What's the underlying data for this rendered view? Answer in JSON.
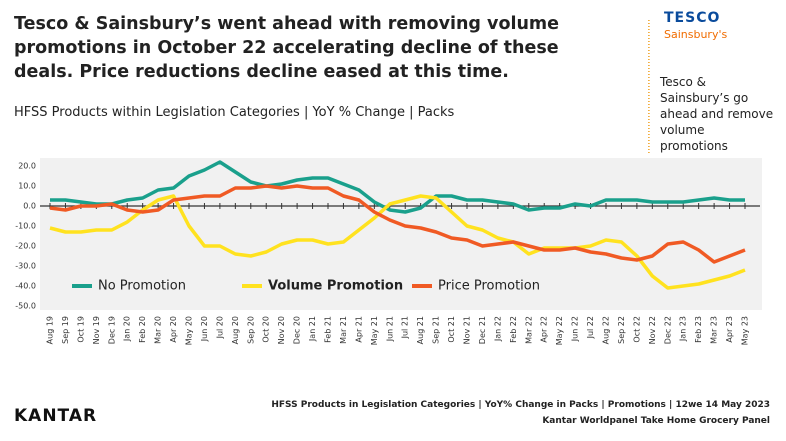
{
  "chart_data": {
    "type": "line",
    "title": "Tesco & Sainsbury’s went ahead with removing volume promotions in October 22 accelerating decline of these deals. Price reductions decline eased at this time.",
    "subtitle": "HFSS Products within Legislation Categories | YoY % Change | Packs",
    "annotation": "Tesco & Sainsbury’s go ahead and remove volume promotions",
    "logos": [
      "TESCO",
      "Sainsbury's"
    ],
    "footer": [
      "HFSS Products in Legislation Categories | YoY% Change in Packs | Promotions | 12we 14 May 2023",
      "Kantar Worldpanel Take Home Grocery Panel"
    ],
    "brand": "KANTAR",
    "categories": [
      "Aug 19",
      "Sep 19",
      "Oct 19",
      "Nov 19",
      "Dec 19",
      "Jan 20",
      "Feb 20",
      "Mar 20",
      "Apr 20",
      "May 20",
      "Jun 20",
      "Jul 20",
      "Aug 20",
      "Sep 20",
      "Oct 20",
      "Nov 20",
      "Dec 20",
      "Jan 21",
      "Feb 21",
      "Mar 21",
      "Apr 21",
      "May 21",
      "Jun 21",
      "Jul 21",
      "Aug 21",
      "Sep 21",
      "Oct 21",
      "Nov 21",
      "Dec 21",
      "Jan 22",
      "Feb 22",
      "Mar 22",
      "Apr 22",
      "May 22",
      "Jun 22",
      "Jul 22",
      "Aug 22",
      "Sep 22",
      "Oct 22",
      "Nov 22",
      "Dec 22",
      "Jan 23",
      "Feb 23",
      "Mar 23",
      "Apr 23",
      "May 23"
    ],
    "series": [
      {
        "name": "No Promotion",
        "color": "#1aa08c",
        "values": [
          3,
          3,
          2,
          1,
          1,
          3,
          4,
          8,
          9,
          15,
          18,
          22,
          17,
          12,
          10,
          11,
          13,
          14,
          14,
          11,
          8,
          2,
          -2,
          -3,
          -1,
          5,
          5,
          3,
          3,
          2,
          1,
          -2,
          -1,
          -1,
          1,
          0,
          3,
          3,
          3,
          2,
          2,
          2,
          3,
          4,
          3,
          3
        ]
      },
      {
        "name": "Volume Promotion",
        "color": "#ffe21f",
        "values": [
          -11,
          -13,
          -13,
          -12,
          -12,
          -8,
          -2,
          3,
          5,
          -10,
          -20,
          -20,
          -24,
          -25,
          -23,
          -19,
          -17,
          -17,
          -19,
          -18,
          -12,
          -6,
          1,
          3,
          5,
          4,
          -3,
          -10,
          -12,
          -16,
          -18,
          -24,
          -21,
          -21,
          -21,
          -20,
          -17,
          -18,
          -25,
          -35,
          -41,
          -40,
          -39,
          -37,
          -35,
          -32
        ]
      },
      {
        "name": "Price Promotion",
        "color": "#f05a24",
        "values": [
          -1,
          -2,
          0,
          0,
          1,
          -2,
          -3,
          -2,
          3,
          4,
          5,
          5,
          9,
          9,
          10,
          9,
          10,
          9,
          9,
          5,
          3,
          -3,
          -7,
          -10,
          -11,
          -13,
          -16,
          -17,
          -20,
          -19,
          -18,
          -20,
          -22,
          -22,
          -21,
          -23,
          -24,
          -26,
          -27,
          -25,
          -19,
          -18,
          -22,
          -28,
          -25,
          -22
        ]
      }
    ],
    "ylim": [
      -50,
      20
    ],
    "yticks": [
      {
        "value": 20,
        "label": "20.0"
      },
      {
        "value": 10,
        "label": "10.0"
      },
      {
        "value": 0,
        "label": "0.0"
      },
      {
        "value": -10,
        "label": "-10.0"
      },
      {
        "value": -20,
        "label": "-20.0"
      },
      {
        "value": -30,
        "label": "-30.0"
      },
      {
        "value": -40,
        "label": "-40.0"
      },
      {
        "value": -50,
        "label": "-50.0"
      }
    ],
    "marker_category": 38
  }
}
